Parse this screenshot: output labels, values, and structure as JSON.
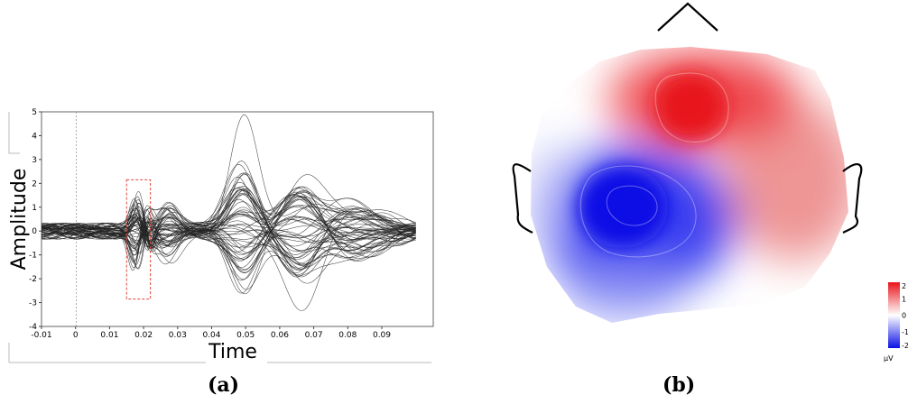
{
  "figure": {
    "panel_a_label": "(a)",
    "panel_b_label": "(b)"
  },
  "colors": {
    "trace": "#222222",
    "highlight_box": "#e0443a",
    "positive": "#e8141b",
    "negative": "#0b10e6",
    "zero": "#ffffff",
    "head_outline": "#000000"
  },
  "chart_data": [
    {
      "type": "line",
      "title": "",
      "xlabel": "Time",
      "ylabel": "Amplitude",
      "xlim": [
        -0.01,
        0.1
      ],
      "ylim": [
        -4,
        5
      ],
      "x_ticks": [
        "-0.01",
        "0",
        "0.01",
        "0.02",
        "0.03",
        "0.04",
        "0.05",
        "0.06",
        "0.07",
        "0.08",
        "0.09"
      ],
      "y_ticks": [
        "5",
        "4",
        "3",
        "2",
        "1",
        "0",
        "-1",
        "-2",
        "-3",
        "-4"
      ],
      "num_channels": 60,
      "peak": {
        "x": 0.049,
        "y": 4.8
      },
      "trough": {
        "x": 0.066,
        "y": -3.4
      },
      "highlight_window": {
        "x": [
          0.015,
          0.022
        ],
        "y": [
          -2.85,
          2.15
        ]
      },
      "grid": false,
      "legend": "none"
    },
    {
      "type": "heatmap",
      "title": "",
      "unit": "μV",
      "colorbar_ticks": [
        "2",
        "1",
        "0",
        "-1",
        "-2"
      ],
      "colorbar_range": [
        -2,
        2
      ],
      "colorscale": [
        "#0b10e6",
        "#ffffff",
        "#e8141b"
      ]
    }
  ]
}
